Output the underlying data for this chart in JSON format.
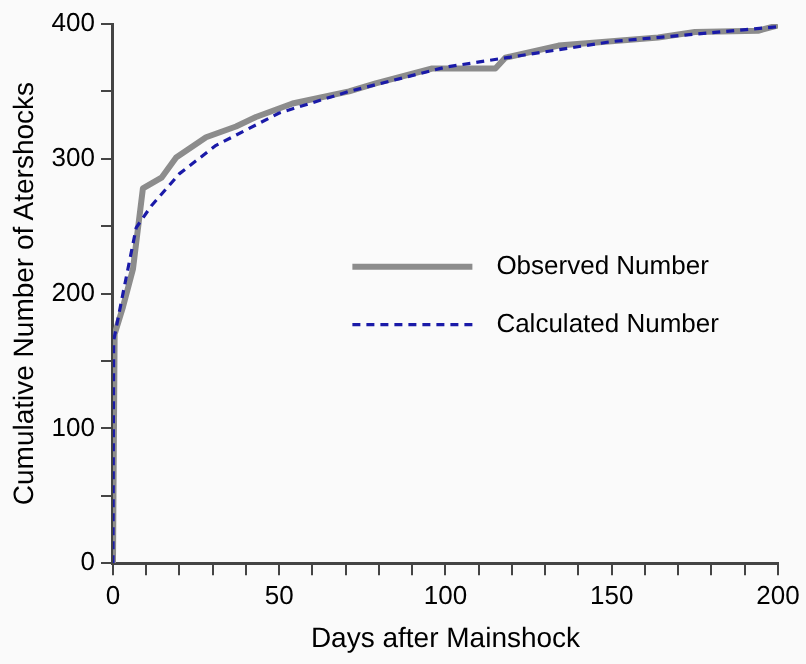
{
  "chart_data": {
    "type": "line",
    "xlabel": "Days after Mainshock",
    "ylabel": "Cumulative Number of Atershocks",
    "xlim": [
      0,
      200
    ],
    "ylim": [
      0,
      400
    ],
    "xticks": [
      0,
      {
        "value": 10,
        "label": null
      },
      {
        "value": 20,
        "label": null
      },
      {
        "value": 30,
        "label": null
      },
      {
        "value": 40,
        "label": null
      },
      50,
      {
        "value": 60,
        "label": null
      },
      {
        "value": 70,
        "label": null
      },
      {
        "value": 80,
        "label": null
      },
      {
        "value": 90,
        "label": null
      },
      100,
      {
        "value": 110,
        "label": null
      },
      {
        "value": 120,
        "label": null
      },
      {
        "value": 130,
        "label": null
      },
      {
        "value": 140,
        "label": null
      },
      150,
      {
        "value": 160,
        "label": null
      },
      {
        "value": 170,
        "label": null
      },
      {
        "value": 180,
        "label": null
      },
      {
        "value": 190,
        "label": null
      },
      200
    ],
    "yticks": [
      0,
      {
        "value": 50,
        "label": null
      },
      100,
      {
        "value": 150,
        "label": null
      },
      200,
      {
        "value": 250,
        "label": null
      },
      300,
      {
        "value": 350,
        "label": null
      },
      400
    ],
    "grid": false,
    "legend": "right",
    "marker": "none",
    "series": [
      {
        "name": "Observed Number",
        "color": "#8c8c8c",
        "line_style": "solid",
        "x": [
          0,
          0.5,
          3,
          6,
          9,
          14.6,
          19,
          28,
          37,
          43,
          54,
          71,
          79,
          96,
          115,
          118,
          134,
          164,
          175,
          194,
          200
        ],
        "values": [
          0,
          170,
          190,
          218,
          278,
          286,
          301,
          316,
          324,
          331,
          341,
          350,
          356,
          367,
          367,
          375,
          384,
          390,
          394,
          395,
          399
        ]
      },
      {
        "name": "Calculated Number",
        "color": "#1a1aa8",
        "line_style": "dashed",
        "x": [
          0,
          0.2,
          3,
          7,
          11.5,
          20,
          31,
          50,
          71,
          100,
          150,
          200
        ],
        "values": [
          0,
          165,
          200,
          249,
          265,
          289,
          310,
          334,
          350,
          368,
          387,
          398
        ]
      }
    ]
  }
}
